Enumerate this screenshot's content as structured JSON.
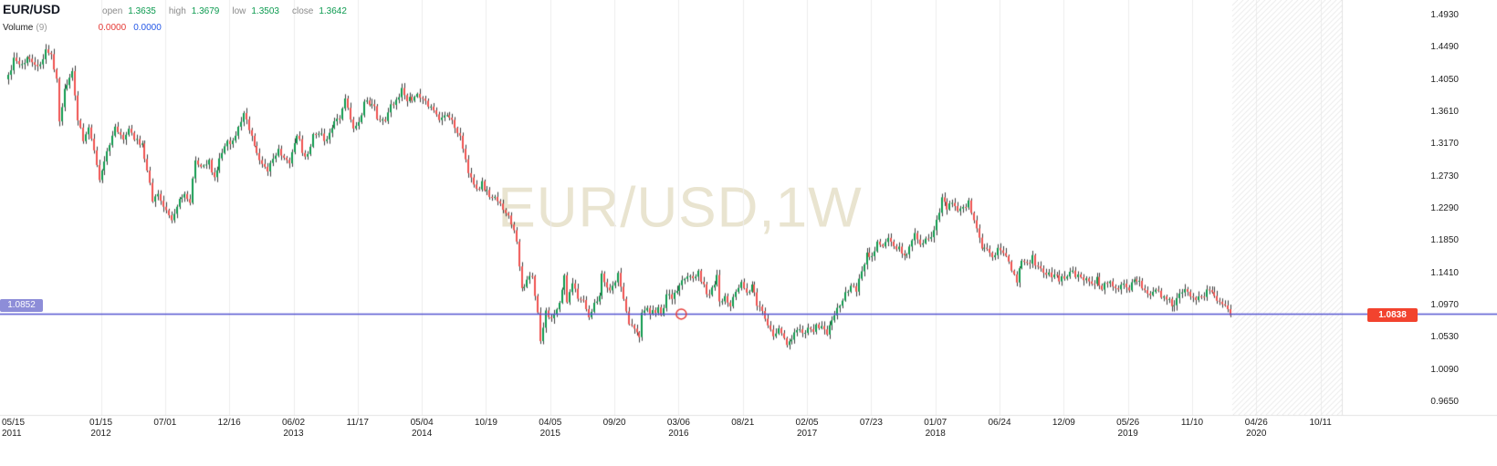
{
  "header": {
    "symbol": "EUR/USD",
    "ohlc": [
      {
        "label": "open",
        "value": "1.3635"
      },
      {
        "label": "high",
        "value": "1.3679"
      },
      {
        "label": "low",
        "value": "1.3503"
      },
      {
        "label": "close",
        "value": "1.3642"
      }
    ],
    "indicator": {
      "name": "Volume",
      "params": "(9)",
      "values": [
        {
          "value": "0.0000",
          "color": "#e53935"
        },
        {
          "value": "0.0000",
          "color": "#2457e6"
        }
      ]
    }
  },
  "watermark": "EUR/USD,1W",
  "price_line": {
    "label": "1.0852",
    "value": 1.0852,
    "color": "#5353d0",
    "tag_bg": "#8d8dd8"
  },
  "last_price": {
    "label": "1.0838",
    "value": 1.0838,
    "tag_bg": "#f2432e"
  },
  "marker": {
    "shape": "circle",
    "color": "#e53935",
    "week": 252,
    "price": 1.0852
  },
  "chart_data": {
    "type": "candlestick",
    "symbol": "EUR/USD",
    "timeframe": "1W",
    "ohlc_header": {
      "open": 1.3635,
      "high": 1.3679,
      "low": 1.3503,
      "close": 1.3642
    },
    "up_color": "#119a4e",
    "down_color": "#ef5350",
    "wick_color": "#3c3c3c",
    "grid_color": "#ececec",
    "y_axis": {
      "min": 0.965,
      "max": 1.493,
      "ticks": [
        "1.4930",
        "1.4490",
        "1.4050",
        "1.3610",
        "1.3170",
        "1.2730",
        "1.2290",
        "1.1850",
        "1.1410",
        "1.0970",
        "1.0530",
        "1.0090",
        "0.9650"
      ]
    },
    "x_axis": {
      "labels": [
        {
          "date": "05/15",
          "year": "2011",
          "week": 0
        },
        {
          "date": "01/15",
          "year": "2012",
          "week": 35
        },
        {
          "date": "07/01",
          "week": 59
        },
        {
          "date": "12/16",
          "week": 83
        },
        {
          "date": "06/02",
          "year": "2013",
          "week": 107
        },
        {
          "date": "11/17",
          "week": 131
        },
        {
          "date": "05/04",
          "year": "2014",
          "week": 155
        },
        {
          "date": "10/19",
          "week": 179
        },
        {
          "date": "04/05",
          "year": "2015",
          "week": 203
        },
        {
          "date": "09/20",
          "week": 227
        },
        {
          "date": "03/06",
          "year": "2016",
          "week": 251
        },
        {
          "date": "08/21",
          "week": 275
        },
        {
          "date": "02/05",
          "year": "2017",
          "week": 299
        },
        {
          "date": "07/23",
          "week": 323
        },
        {
          "date": "01/07",
          "year": "2018",
          "week": 347
        },
        {
          "date": "06/24",
          "week": 371
        },
        {
          "date": "12/09",
          "week": 395
        },
        {
          "date": "05/26",
          "year": "2019",
          "week": 419
        },
        {
          "date": "11/10",
          "week": 443
        },
        {
          "date": "04/26",
          "year": "2020",
          "week": 467
        },
        {
          "date": "10/11",
          "week": 491
        }
      ]
    },
    "last_week": 457,
    "weeks_total": 492,
    "anchors": [
      [
        0,
        1.412
      ],
      [
        2,
        1.432
      ],
      [
        5,
        1.425
      ],
      [
        8,
        1.438
      ],
      [
        11,
        1.42
      ],
      [
        14,
        1.445
      ],
      [
        16,
        1.438
      ],
      [
        18,
        1.405
      ],
      [
        19,
        1.35
      ],
      [
        21,
        1.389
      ],
      [
        24,
        1.414
      ],
      [
        26,
        1.352
      ],
      [
        28,
        1.324
      ],
      [
        30,
        1.339
      ],
      [
        32,
        1.305
      ],
      [
        34,
        1.268
      ],
      [
        36,
        1.293
      ],
      [
        38,
        1.316
      ],
      [
        40,
        1.345
      ],
      [
        43,
        1.32
      ],
      [
        45,
        1.334
      ],
      [
        48,
        1.322
      ],
      [
        50,
        1.316
      ],
      [
        52,
        1.278
      ],
      [
        54,
        1.243
      ],
      [
        56,
        1.251
      ],
      [
        58,
        1.229
      ],
      [
        61,
        1.213
      ],
      [
        63,
        1.232
      ],
      [
        66,
        1.251
      ],
      [
        68,
        1.238
      ],
      [
        70,
        1.298
      ],
      [
        72,
        1.286
      ],
      [
        75,
        1.294
      ],
      [
        77,
        1.271
      ],
      [
        79,
        1.297
      ],
      [
        82,
        1.319
      ],
      [
        84,
        1.322
      ],
      [
        86,
        1.338
      ],
      [
        88,
        1.364
      ],
      [
        90,
        1.337
      ],
      [
        93,
        1.302
      ],
      [
        95,
        1.29
      ],
      [
        97,
        1.282
      ],
      [
        99,
        1.299
      ],
      [
        101,
        1.311
      ],
      [
        103,
        1.299
      ],
      [
        105,
        1.293
      ],
      [
        107,
        1.322
      ],
      [
        109,
        1.327
      ],
      [
        110,
        1.301
      ],
      [
        112,
        1.307
      ],
      [
        114,
        1.328
      ],
      [
        116,
        1.333
      ],
      [
        118,
        1.323
      ],
      [
        120,
        1.329
      ],
      [
        122,
        1.353
      ],
      [
        124,
        1.355
      ],
      [
        126,
        1.38
      ],
      [
        128,
        1.349
      ],
      [
        129,
        1.336
      ],
      [
        131,
        1.35
      ],
      [
        133,
        1.372
      ],
      [
        136,
        1.375
      ],
      [
        138,
        1.355
      ],
      [
        141,
        1.353
      ],
      [
        143,
        1.372
      ],
      [
        145,
        1.376
      ],
      [
        147,
        1.391
      ],
      [
        149,
        1.379
      ],
      [
        151,
        1.381
      ],
      [
        153,
        1.387
      ],
      [
        155,
        1.376
      ],
      [
        157,
        1.37
      ],
      [
        159,
        1.364
      ],
      [
        161,
        1.353
      ],
      [
        163,
        1.36
      ],
      [
        165,
        1.352
      ],
      [
        167,
        1.343
      ],
      [
        169,
        1.325
      ],
      [
        171,
        1.295
      ],
      [
        173,
        1.268
      ],
      [
        175,
        1.252
      ],
      [
        177,
        1.263
      ],
      [
        179,
        1.253
      ],
      [
        181,
        1.245
      ],
      [
        183,
        1.239
      ],
      [
        185,
        1.228
      ],
      [
        187,
        1.218
      ],
      [
        189,
        1.2
      ],
      [
        190,
        1.184
      ],
      [
        192,
        1.12
      ],
      [
        194,
        1.129
      ],
      [
        196,
        1.138
      ],
      [
        198,
        1.084
      ],
      [
        199,
        1.05
      ],
      [
        201,
        1.089
      ],
      [
        203,
        1.081
      ],
      [
        205,
        1.088
      ],
      [
        207,
        1.12
      ],
      [
        208,
        1.142
      ],
      [
        209,
        1.101
      ],
      [
        211,
        1.126
      ],
      [
        213,
        1.11
      ],
      [
        215,
        1.1
      ],
      [
        217,
        1.083
      ],
      [
        219,
        1.097
      ],
      [
        221,
        1.108
      ],
      [
        222,
        1.139
      ],
      [
        224,
        1.118
      ],
      [
        226,
        1.12
      ],
      [
        228,
        1.144
      ],
      [
        230,
        1.102
      ],
      [
        232,
        1.074
      ],
      [
        234,
        1.064
      ],
      [
        236,
        1.056
      ],
      [
        237,
        1.088
      ],
      [
        239,
        1.092
      ],
      [
        241,
        1.087
      ],
      [
        243,
        1.092
      ],
      [
        244,
        1.08
      ],
      [
        246,
        1.116
      ],
      [
        248,
        1.11
      ],
      [
        250,
        1.115
      ],
      [
        252,
        1.127
      ],
      [
        254,
        1.14
      ],
      [
        256,
        1.13
      ],
      [
        258,
        1.145
      ],
      [
        260,
        1.122
      ],
      [
        262,
        1.111
      ],
      [
        264,
        1.127
      ],
      [
        265,
        1.138
      ],
      [
        266,
        1.102
      ],
      [
        268,
        1.111
      ],
      [
        270,
        1.098
      ],
      [
        272,
        1.117
      ],
      [
        274,
        1.133
      ],
      [
        276,
        1.116
      ],
      [
        278,
        1.123
      ],
      [
        280,
        1.1
      ],
      [
        282,
        1.088
      ],
      [
        284,
        1.073
      ],
      [
        286,
        1.059
      ],
      [
        288,
        1.067
      ],
      [
        289,
        1.056
      ],
      [
        291,
        1.042
      ],
      [
        293,
        1.053
      ],
      [
        294,
        1.064
      ],
      [
        296,
        1.061
      ],
      [
        298,
        1.064
      ],
      [
        300,
        1.062
      ],
      [
        302,
        1.067
      ],
      [
        304,
        1.07
      ],
      [
        306,
        1.059
      ],
      [
        308,
        1.073
      ],
      [
        309,
        1.087
      ],
      [
        311,
        1.098
      ],
      [
        313,
        1.118
      ],
      [
        315,
        1.12
      ],
      [
        317,
        1.119
      ],
      [
        319,
        1.14
      ],
      [
        321,
        1.166
      ],
      [
        323,
        1.164
      ],
      [
        325,
        1.182
      ],
      [
        327,
        1.175
      ],
      [
        329,
        1.192
      ],
      [
        331,
        1.181
      ],
      [
        333,
        1.175
      ],
      [
        335,
        1.161
      ],
      [
        337,
        1.179
      ],
      [
        339,
        1.193
      ],
      [
        341,
        1.18
      ],
      [
        343,
        1.186
      ],
      [
        345,
        1.192
      ],
      [
        346,
        1.203
      ],
      [
        348,
        1.22
      ],
      [
        349,
        1.246
      ],
      [
        351,
        1.229
      ],
      [
        353,
        1.241
      ],
      [
        355,
        1.229
      ],
      [
        357,
        1.232
      ],
      [
        359,
        1.236
      ],
      [
        361,
        1.213
      ],
      [
        363,
        1.192
      ],
      [
        364,
        1.177
      ],
      [
        366,
        1.17
      ],
      [
        368,
        1.161
      ],
      [
        370,
        1.174
      ],
      [
        372,
        1.169
      ],
      [
        374,
        1.157
      ],
      [
        376,
        1.141
      ],
      [
        377,
        1.131
      ],
      [
        379,
        1.162
      ],
      [
        381,
        1.155
      ],
      [
        383,
        1.162
      ],
      [
        385,
        1.149
      ],
      [
        387,
        1.141
      ],
      [
        389,
        1.14
      ],
      [
        391,
        1.136
      ],
      [
        393,
        1.133
      ],
      [
        395,
        1.132
      ],
      [
        397,
        1.146
      ],
      [
        399,
        1.137
      ],
      [
        401,
        1.134
      ],
      [
        403,
        1.13
      ],
      [
        405,
        1.124
      ],
      [
        407,
        1.132
      ],
      [
        409,
        1.122
      ],
      [
        411,
        1.13
      ],
      [
        413,
        1.122
      ],
      [
        415,
        1.12
      ],
      [
        417,
        1.126
      ],
      [
        419,
        1.117
      ],
      [
        421,
        1.137
      ],
      [
        423,
        1.127
      ],
      [
        425,
        1.122
      ],
      [
        427,
        1.113
      ],
      [
        429,
        1.12
      ],
      [
        431,
        1.11
      ],
      [
        433,
        1.107
      ],
      [
        435,
        1.098
      ],
      [
        437,
        1.104
      ],
      [
        439,
        1.116
      ],
      [
        441,
        1.117
      ],
      [
        443,
        1.105
      ],
      [
        445,
        1.106
      ],
      [
        447,
        1.112
      ],
      [
        449,
        1.121
      ],
      [
        451,
        1.109
      ],
      [
        453,
        1.103
      ],
      [
        455,
        1.095
      ],
      [
        456,
        1.088
      ],
      [
        457,
        1.0838
      ]
    ]
  }
}
